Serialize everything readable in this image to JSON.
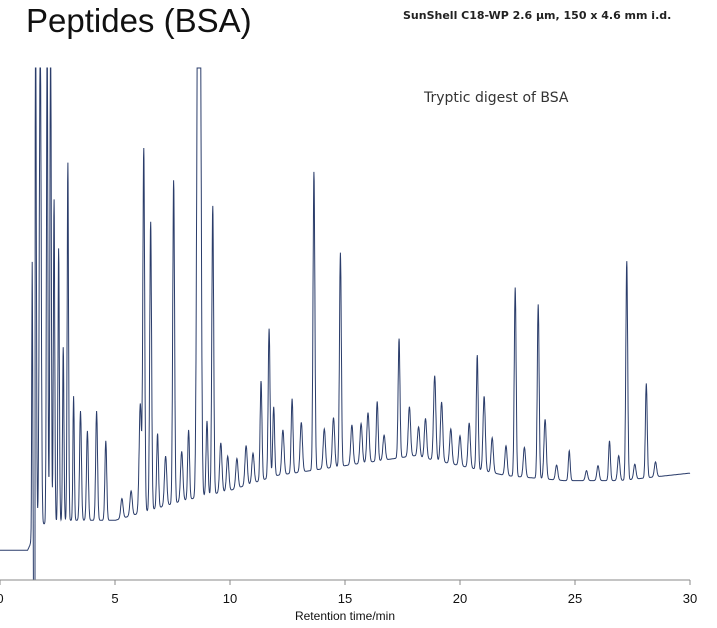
{
  "page": {
    "title": "Peptides (BSA)",
    "column_info": "SunShell  C18-WP 2.6 µm, 150 x 4.6 mm i.d."
  },
  "chart_data": {
    "type": "line",
    "title": "Peptides (BSA)",
    "subtitle": "SunShell  C18-WP 2.6 µm, 150 x 4.6 mm i.d.",
    "annotation": "Tryptic digest of BSA",
    "xlabel": "Retention time/min",
    "ylabel": "",
    "xlim": [
      0,
      30
    ],
    "ylim": [
      -3,
      100
    ],
    "x_ticks": [
      0,
      5,
      10,
      15,
      20,
      25,
      30
    ],
    "x_tick_labels": [
      "0",
      "5",
      "10",
      "15",
      "20",
      "25",
      "30"
    ],
    "grid": false,
    "legend": "none",
    "line_color": "#2b3d6b",
    "baseline": [
      [
        0,
        3
      ],
      [
        1.2,
        3
      ],
      [
        1.3,
        4
      ],
      [
        1.5,
        8
      ],
      [
        3,
        9
      ],
      [
        5,
        9
      ],
      [
        8,
        13
      ],
      [
        10,
        15
      ],
      [
        12,
        18
      ],
      [
        15,
        20
      ],
      [
        18,
        22
      ],
      [
        20,
        20
      ],
      [
        22,
        18
      ],
      [
        24.5,
        17
      ],
      [
        27,
        17
      ],
      [
        30,
        18.5
      ]
    ],
    "peaks": [
      [
        1.4,
        55,
        0.02
      ],
      [
        1.55,
        100,
        0.03
      ],
      [
        1.75,
        100,
        0.04
      ],
      [
        2.05,
        100,
        0.03
      ],
      [
        2.2,
        100,
        0.03
      ],
      [
        2.35,
        65,
        0.03
      ],
      [
        2.55,
        55,
        0.03
      ],
      [
        2.75,
        35,
        0.03
      ],
      [
        2.95,
        72,
        0.03
      ],
      [
        3.2,
        25,
        0.03
      ],
      [
        3.5,
        22,
        0.04
      ],
      [
        3.8,
        18,
        0.04
      ],
      [
        4.2,
        22,
        0.04
      ],
      [
        4.6,
        16,
        0.04
      ],
      [
        5.3,
        4,
        0.05
      ],
      [
        5.7,
        5,
        0.05
      ],
      [
        6.1,
        22,
        0.05
      ],
      [
        6.25,
        73,
        0.04
      ],
      [
        6.55,
        58,
        0.04
      ],
      [
        6.85,
        15,
        0.04
      ],
      [
        7.2,
        10,
        0.05
      ],
      [
        7.55,
        65,
        0.04
      ],
      [
        7.9,
        10,
        0.05
      ],
      [
        8.2,
        14,
        0.04
      ],
      [
        8.6,
        100,
        0.05
      ],
      [
        8.7,
        100,
        0.05
      ],
      [
        9.0,
        15,
        0.04
      ],
      [
        9.25,
        58,
        0.04
      ],
      [
        9.6,
        10,
        0.05
      ],
      [
        9.9,
        7,
        0.05
      ],
      [
        10.3,
        6,
        0.05
      ],
      [
        10.7,
        8,
        0.05
      ],
      [
        11.0,
        6,
        0.05
      ],
      [
        11.35,
        20,
        0.04
      ],
      [
        11.7,
        30,
        0.04
      ],
      [
        11.9,
        14,
        0.04
      ],
      [
        12.3,
        9,
        0.05
      ],
      [
        12.7,
        15,
        0.04
      ],
      [
        13.1,
        10,
        0.05
      ],
      [
        13.65,
        60,
        0.04
      ],
      [
        14.1,
        8,
        0.05
      ],
      [
        14.5,
        10,
        0.05
      ],
      [
        14.8,
        43,
        0.04
      ],
      [
        15.3,
        8,
        0.05
      ],
      [
        15.7,
        8,
        0.05
      ],
      [
        16.0,
        10,
        0.05
      ],
      [
        16.4,
        12,
        0.04
      ],
      [
        16.7,
        5,
        0.05
      ],
      [
        17.35,
        24,
        0.04
      ],
      [
        17.8,
        10,
        0.05
      ],
      [
        18.2,
        6,
        0.05
      ],
      [
        18.5,
        8,
        0.05
      ],
      [
        18.9,
        17,
        0.05
      ],
      [
        19.2,
        12,
        0.05
      ],
      [
        19.6,
        7,
        0.05
      ],
      [
        20.0,
        6,
        0.05
      ],
      [
        20.4,
        9,
        0.05
      ],
      [
        20.75,
        23,
        0.04
      ],
      [
        21.05,
        15,
        0.05
      ],
      [
        21.4,
        7,
        0.05
      ],
      [
        22.0,
        6,
        0.05
      ],
      [
        22.4,
        38,
        0.04
      ],
      [
        22.8,
        6,
        0.05
      ],
      [
        23.4,
        35,
        0.04
      ],
      [
        23.7,
        12,
        0.05
      ],
      [
        24.2,
        3,
        0.05
      ],
      [
        24.75,
        6,
        0.04
      ],
      [
        25.5,
        2,
        0.05
      ],
      [
        26.0,
        3,
        0.05
      ],
      [
        26.5,
        8,
        0.04
      ],
      [
        26.9,
        5,
        0.05
      ],
      [
        27.25,
        44,
        0.04
      ],
      [
        27.6,
        3,
        0.05
      ],
      [
        28.1,
        19,
        0.04
      ],
      [
        28.5,
        3,
        0.05
      ]
    ]
  }
}
